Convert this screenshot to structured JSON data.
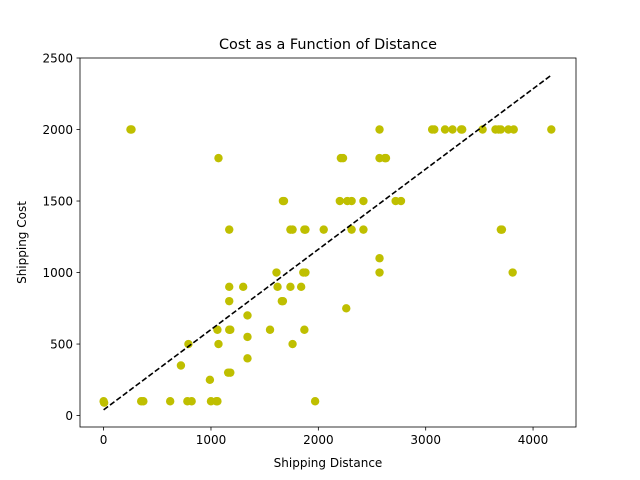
{
  "chart_data": {
    "type": "scatter",
    "title": "Cost as a Function of Distance",
    "xlabel": "Shipping Distance",
    "ylabel": "Shipping Cost",
    "xlim": [
      -220,
      4400
    ],
    "ylim": [
      -80,
      2500
    ],
    "xticks": [
      0,
      1000,
      2000,
      3000,
      4000
    ],
    "yticks": [
      0,
      500,
      1000,
      1500,
      2000,
      2500
    ],
    "grid": false,
    "legend": "none",
    "point_color": "#bfbf00",
    "trendline_color": "#000000",
    "trendline": {
      "x": [
        0,
        4170
      ],
      "y": [
        40,
        2380
      ]
    },
    "points": [
      {
        "x": 0,
        "y": 100
      },
      {
        "x": 5,
        "y": 90
      },
      {
        "x": 250,
        "y": 2000
      },
      {
        "x": 260,
        "y": 2000
      },
      {
        "x": 350,
        "y": 100
      },
      {
        "x": 370,
        "y": 100
      },
      {
        "x": 620,
        "y": 100
      },
      {
        "x": 720,
        "y": 350
      },
      {
        "x": 780,
        "y": 100
      },
      {
        "x": 790,
        "y": 500
      },
      {
        "x": 820,
        "y": 100
      },
      {
        "x": 990,
        "y": 250
      },
      {
        "x": 1000,
        "y": 100
      },
      {
        "x": 1050,
        "y": 100
      },
      {
        "x": 1060,
        "y": 100
      },
      {
        "x": 1060,
        "y": 600
      },
      {
        "x": 1070,
        "y": 500
      },
      {
        "x": 1070,
        "y": 1800
      },
      {
        "x": 1160,
        "y": 300
      },
      {
        "x": 1170,
        "y": 600
      },
      {
        "x": 1170,
        "y": 800
      },
      {
        "x": 1170,
        "y": 900
      },
      {
        "x": 1170,
        "y": 1300
      },
      {
        "x": 1180,
        "y": 300
      },
      {
        "x": 1180,
        "y": 600
      },
      {
        "x": 1300,
        "y": 900
      },
      {
        "x": 1340,
        "y": 400
      },
      {
        "x": 1340,
        "y": 550
      },
      {
        "x": 1340,
        "y": 700
      },
      {
        "x": 1550,
        "y": 600
      },
      {
        "x": 1610,
        "y": 1000
      },
      {
        "x": 1620,
        "y": 900
      },
      {
        "x": 1660,
        "y": 800
      },
      {
        "x": 1670,
        "y": 800
      },
      {
        "x": 1670,
        "y": 1500
      },
      {
        "x": 1680,
        "y": 1500
      },
      {
        "x": 1740,
        "y": 900
      },
      {
        "x": 1740,
        "y": 1300
      },
      {
        "x": 1760,
        "y": 1300
      },
      {
        "x": 1760,
        "y": 500
      },
      {
        "x": 1840,
        "y": 900
      },
      {
        "x": 1860,
        "y": 1000
      },
      {
        "x": 1870,
        "y": 600
      },
      {
        "x": 1870,
        "y": 1300
      },
      {
        "x": 1880,
        "y": 1000
      },
      {
        "x": 1880,
        "y": 1300
      },
      {
        "x": 1970,
        "y": 100
      },
      {
        "x": 2050,
        "y": 1300
      },
      {
        "x": 2200,
        "y": 1500
      },
      {
        "x": 2210,
        "y": 1800
      },
      {
        "x": 2230,
        "y": 1800
      },
      {
        "x": 2260,
        "y": 750
      },
      {
        "x": 2270,
        "y": 1500
      },
      {
        "x": 2310,
        "y": 1300
      },
      {
        "x": 2310,
        "y": 1500
      },
      {
        "x": 2420,
        "y": 1300
      },
      {
        "x": 2420,
        "y": 1500
      },
      {
        "x": 2570,
        "y": 1000
      },
      {
        "x": 2570,
        "y": 1100
      },
      {
        "x": 2570,
        "y": 1800
      },
      {
        "x": 2570,
        "y": 2000
      },
      {
        "x": 2620,
        "y": 1800
      },
      {
        "x": 2630,
        "y": 1800
      },
      {
        "x": 2720,
        "y": 1500
      },
      {
        "x": 2770,
        "y": 1500
      },
      {
        "x": 3060,
        "y": 2000
      },
      {
        "x": 3080,
        "y": 2000
      },
      {
        "x": 3180,
        "y": 2000
      },
      {
        "x": 3250,
        "y": 2000
      },
      {
        "x": 3330,
        "y": 2000
      },
      {
        "x": 3340,
        "y": 2000
      },
      {
        "x": 3530,
        "y": 2000
      },
      {
        "x": 3650,
        "y": 2000
      },
      {
        "x": 3680,
        "y": 2000
      },
      {
        "x": 3700,
        "y": 2000
      },
      {
        "x": 3700,
        "y": 1300
      },
      {
        "x": 3710,
        "y": 1300
      },
      {
        "x": 3770,
        "y": 2000
      },
      {
        "x": 3820,
        "y": 2000
      },
      {
        "x": 3810,
        "y": 1000
      },
      {
        "x": 4170,
        "y": 2000
      }
    ]
  }
}
